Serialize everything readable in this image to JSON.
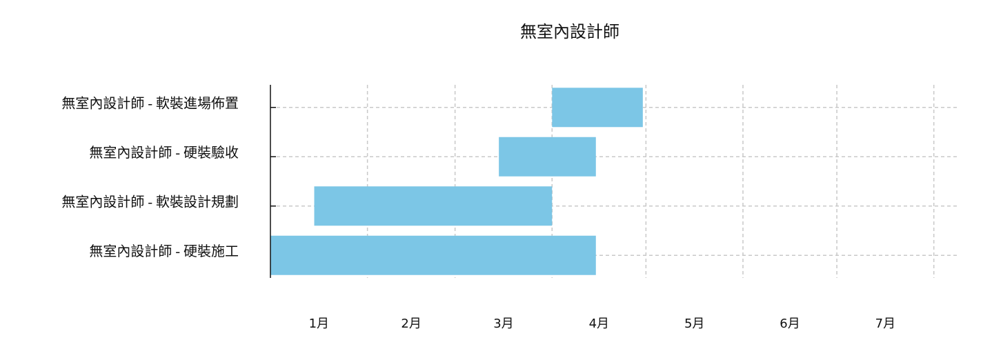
{
  "chart_data": {
    "type": "gantt",
    "title": "無室內設計師",
    "categories": [
      "無室內設計師 - 軟裝進場佈置",
      "無室內設計師 - 硬裝驗收",
      "無室內設計師 - 軟裝設計規劃",
      "無室內設計師 - 硬裝施工"
    ],
    "start": [
      90,
      73,
      14,
      0
    ],
    "end": [
      119,
      104,
      90,
      104
    ],
    "color": "#7cc6e6",
    "xlim": [
      0,
      220
    ],
    "xticks": [
      {
        "value": 15.5,
        "label": "1月"
      },
      {
        "value": 45,
        "label": "2月"
      },
      {
        "value": 74.5,
        "label": "3月"
      },
      {
        "value": 105,
        "label": "4月"
      },
      {
        "value": 135.5,
        "label": "5月"
      },
      {
        "value": 166,
        "label": "6月"
      },
      {
        "value": 196.5,
        "label": "7月"
      }
    ],
    "xgrid": [
      31,
      59,
      90,
      120,
      151,
      181,
      212
    ],
    "grid": true
  }
}
